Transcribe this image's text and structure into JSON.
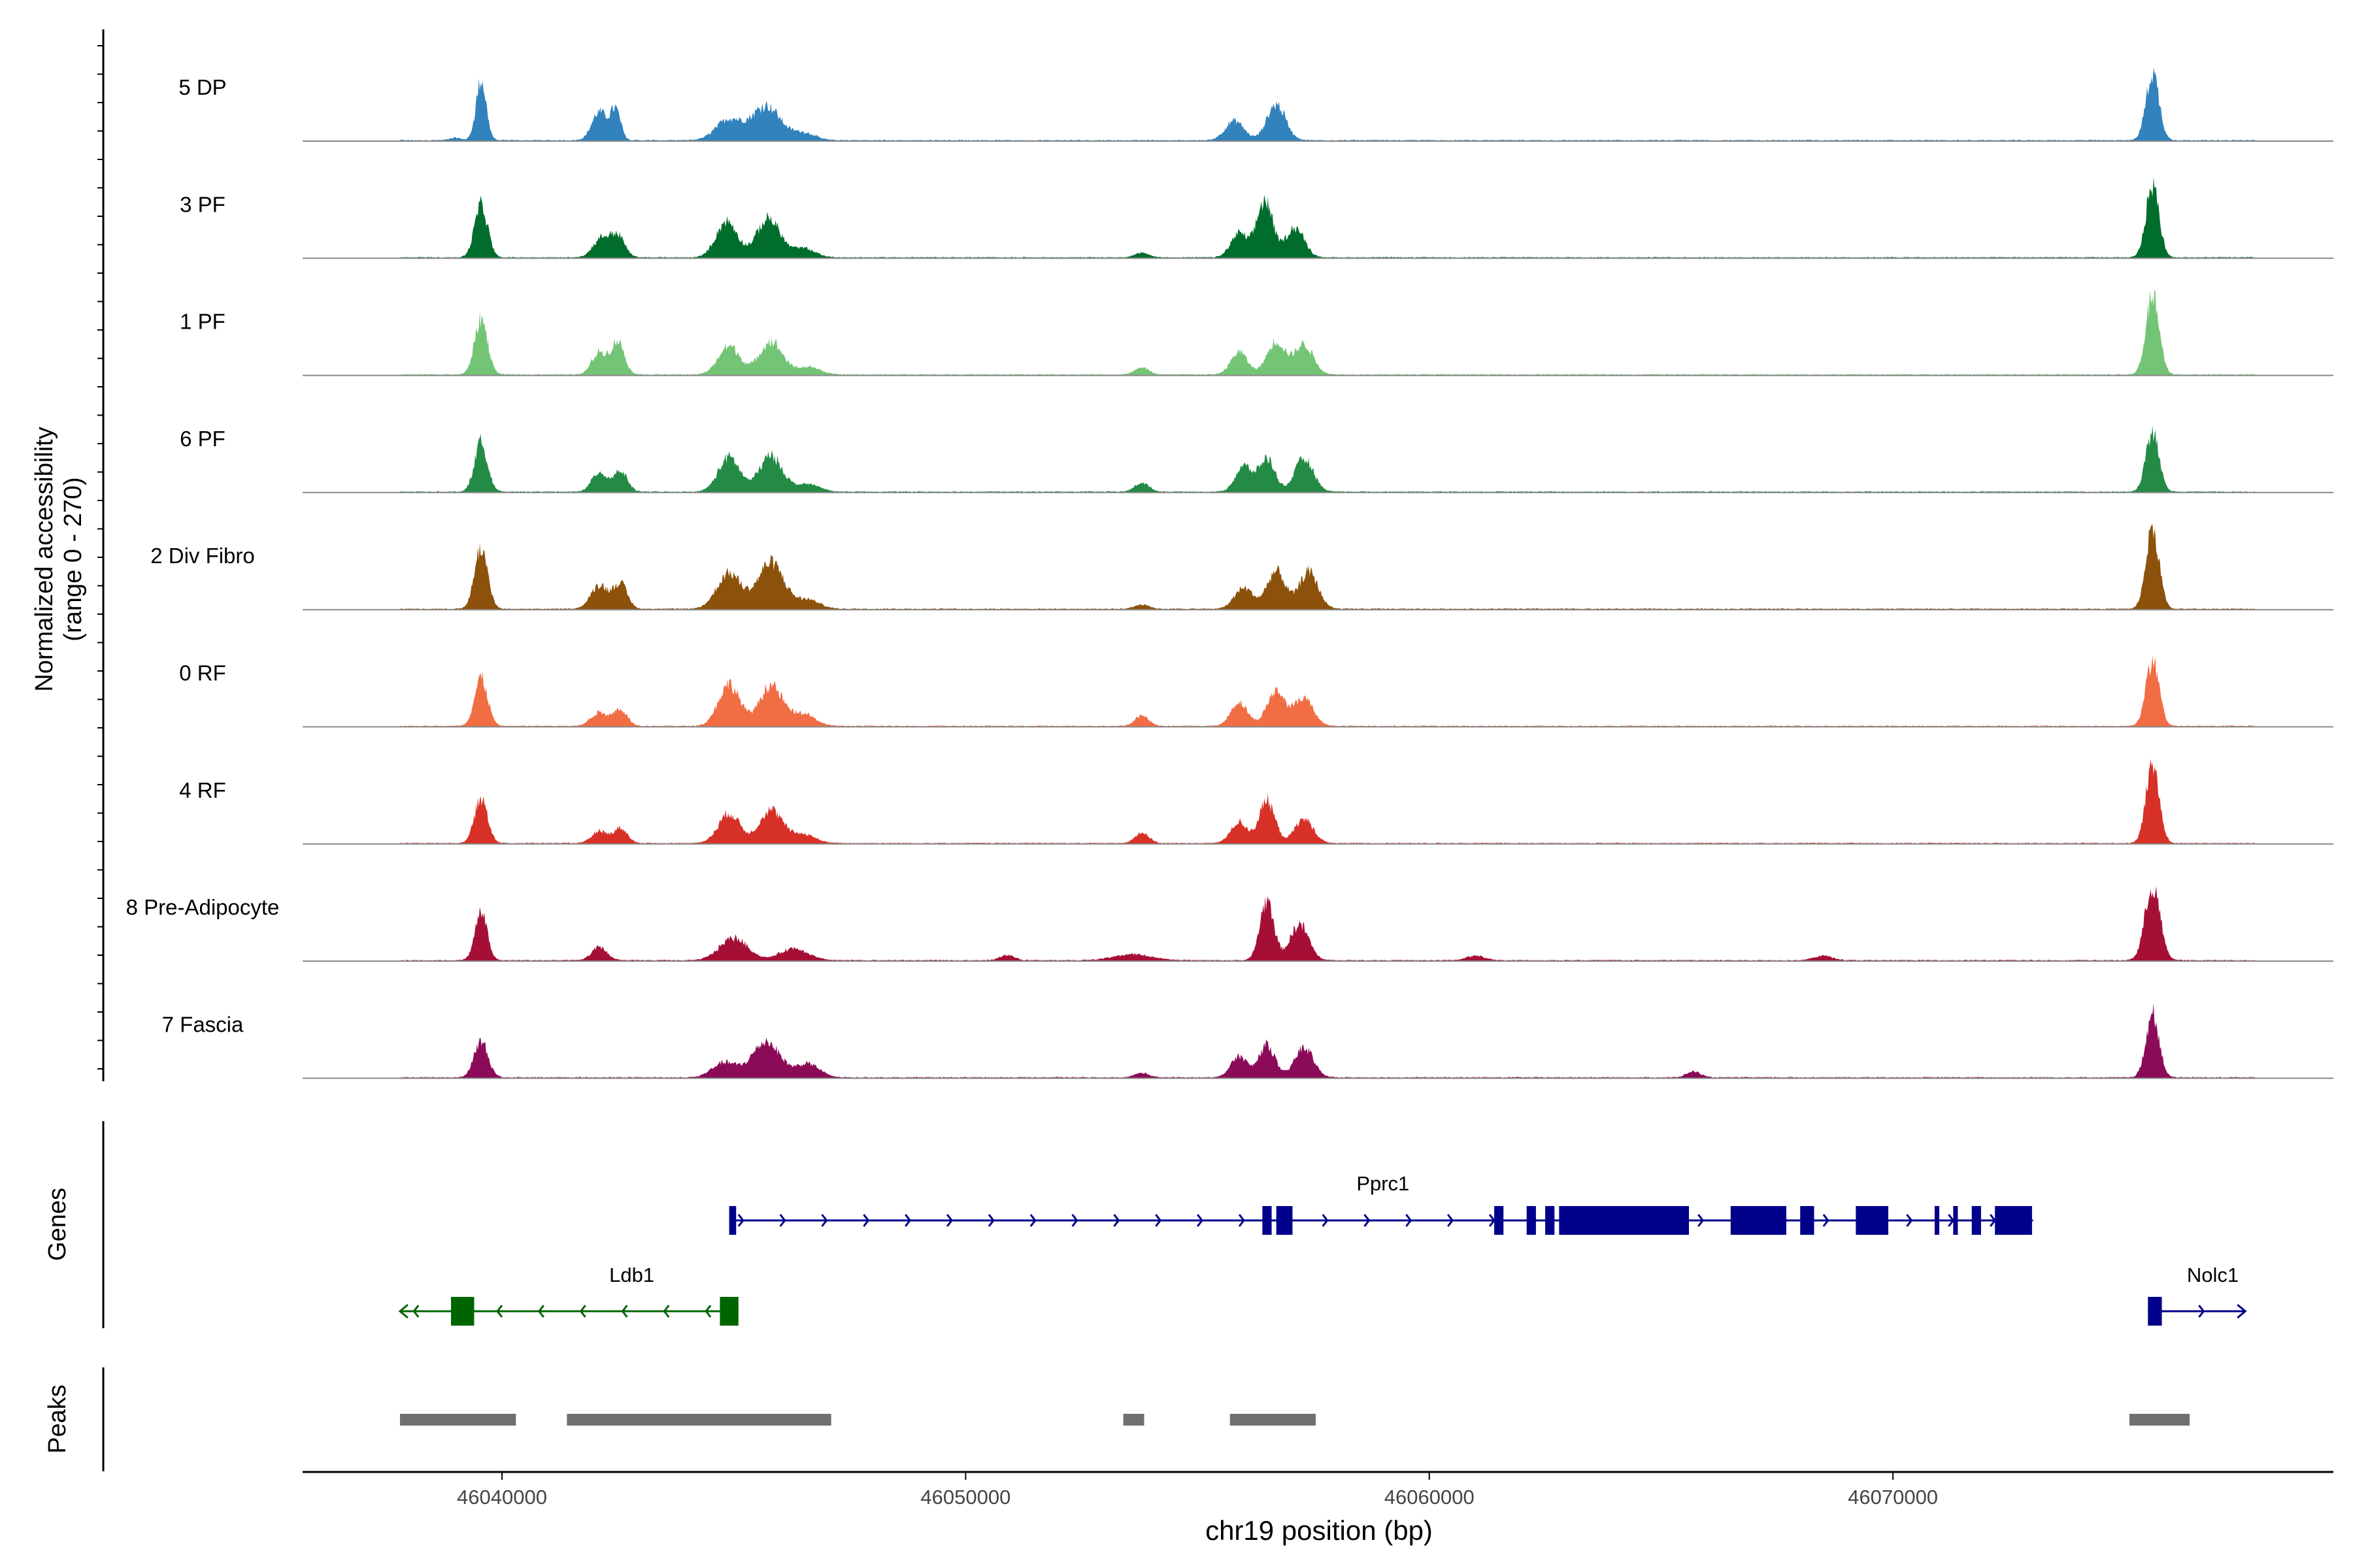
{
  "chart_data": {
    "type": "area",
    "genomic_region": "chr19:46035700-46079500",
    "ylabel": "Normalized accessibility",
    "ylabel_range": "(range 0 - 270)",
    "ylim": [
      0,
      270
    ],
    "xlabel": "chr19 position (bp)",
    "xlim": [
      46035700,
      46079500
    ],
    "x_ticks": [
      46040000,
      46050000,
      46060000,
      46070000
    ],
    "x_tick_labels": [
      "46040000",
      "46050000",
      "46060000",
      "46070000"
    ],
    "tracks": [
      {
        "name": "5 DP",
        "color": "#3182BD",
        "scale": 1.0,
        "peaks": [
          [
            46039550,
            200,
            110
          ],
          [
            46039000,
            8,
            120
          ],
          [
            46042100,
            95,
            160
          ],
          [
            46042450,
            100,
            110
          ],
          [
            46044900,
            70,
            280
          ],
          [
            46045700,
            115,
            300
          ],
          [
            46046500,
            25,
            250
          ],
          [
            46055800,
            65,
            200
          ],
          [
            46056700,
            120,
            200
          ],
          [
            46075600,
            225,
            140
          ]
        ]
      },
      {
        "name": "3 PF",
        "color": "#006D2C",
        "scale": 1.0,
        "peaks": [
          [
            46039550,
            175,
            140
          ],
          [
            46042150,
            65,
            180
          ],
          [
            46042500,
            70,
            150
          ],
          [
            46044850,
            120,
            230
          ],
          [
            46045750,
            130,
            250
          ],
          [
            46046500,
            30,
            250
          ],
          [
            46053800,
            15,
            150
          ],
          [
            46055900,
            80,
            180
          ],
          [
            46056450,
            190,
            170
          ],
          [
            46057100,
            100,
            200
          ],
          [
            46075600,
            240,
            140
          ]
        ]
      },
      {
        "name": "1 PF",
        "color": "#74C476",
        "scale": 1.0,
        "peaks": [
          [
            46039550,
            185,
            140
          ],
          [
            46042100,
            75,
            160
          ],
          [
            46042500,
            110,
            140
          ],
          [
            46044900,
            95,
            230
          ],
          [
            46045800,
            110,
            250
          ],
          [
            46046600,
            25,
            250
          ],
          [
            46053800,
            25,
            150
          ],
          [
            46055900,
            75,
            180
          ],
          [
            46056700,
            110,
            200
          ],
          [
            46057300,
            100,
            200
          ],
          [
            46075600,
            265,
            140
          ]
        ]
      },
      {
        "name": "6 PF",
        "color": "#238B45",
        "scale": 1.0,
        "peaks": [
          [
            46039550,
            165,
            140
          ],
          [
            46042100,
            65,
            160
          ],
          [
            46042550,
            70,
            150
          ],
          [
            46044900,
            115,
            230
          ],
          [
            46045800,
            120,
            250
          ],
          [
            46046600,
            25,
            250
          ],
          [
            46053800,
            30,
            150
          ],
          [
            46056000,
            85,
            180
          ],
          [
            46056500,
            110,
            170
          ],
          [
            46057300,
            110,
            200
          ],
          [
            46075600,
            200,
            140
          ]
        ]
      },
      {
        "name": "2 Div Fibro",
        "color": "#8C510A",
        "scale": 1.0,
        "peaks": [
          [
            46039550,
            205,
            140
          ],
          [
            46042100,
            80,
            180
          ],
          [
            46042550,
            85,
            150
          ],
          [
            46044900,
            120,
            260
          ],
          [
            46045800,
            155,
            280
          ],
          [
            46046600,
            30,
            250
          ],
          [
            46053800,
            15,
            150
          ],
          [
            46056000,
            70,
            200
          ],
          [
            46056700,
            125,
            200
          ],
          [
            46057400,
            125,
            200
          ],
          [
            46075600,
            270,
            140
          ]
        ]
      },
      {
        "name": "0 RF",
        "color": "#F16D43",
        "scale": 1.0,
        "peaks": [
          [
            46039550,
            160,
            140
          ],
          [
            46042100,
            45,
            180
          ],
          [
            46042550,
            55,
            150
          ],
          [
            46044900,
            140,
            230
          ],
          [
            46045800,
            135,
            250
          ],
          [
            46046500,
            40,
            250
          ],
          [
            46053800,
            35,
            150
          ],
          [
            46055900,
            80,
            180
          ],
          [
            46056700,
            115,
            200
          ],
          [
            46057300,
            95,
            200
          ],
          [
            46075600,
            220,
            140
          ]
        ]
      },
      {
        "name": "4 RF",
        "color": "#D73027",
        "scale": 1.0,
        "peaks": [
          [
            46039550,
            150,
            140
          ],
          [
            46042100,
            40,
            160
          ],
          [
            46042550,
            50,
            150
          ],
          [
            46044900,
            100,
            230
          ],
          [
            46045800,
            110,
            250
          ],
          [
            46046500,
            30,
            250
          ],
          [
            46053800,
            35,
            150
          ],
          [
            46055900,
            70,
            180
          ],
          [
            46056500,
            140,
            170
          ],
          [
            46057300,
            80,
            200
          ],
          [
            46075600,
            270,
            140
          ]
        ]
      },
      {
        "name": "8 Pre-Adipocyte",
        "color": "#A50F36",
        "scale": 1.0,
        "peaks": [
          [
            46039550,
            160,
            130
          ],
          [
            46042100,
            45,
            160
          ],
          [
            46045000,
            75,
            300
          ],
          [
            46046300,
            40,
            300
          ],
          [
            46056500,
            200,
            150
          ],
          [
            46057200,
            120,
            200
          ],
          [
            46075600,
            250,
            160
          ],
          [
            46053600,
            20,
            400
          ],
          [
            46050900,
            18,
            150
          ],
          [
            46061000,
            15,
            200
          ],
          [
            46068500,
            15,
            200
          ]
        ]
      },
      {
        "name": "7 Fascia",
        "color": "#8B0B58",
        "scale": 1.0,
        "peaks": [
          [
            46039550,
            120,
            150
          ],
          [
            46044800,
            50,
            260
          ],
          [
            46045700,
            120,
            300
          ],
          [
            46046600,
            45,
            250
          ],
          [
            46053800,
            15,
            150
          ],
          [
            46055900,
            70,
            180
          ],
          [
            46056500,
            110,
            170
          ],
          [
            46057300,
            100,
            200
          ],
          [
            46065700,
            20,
            150
          ],
          [
            46075600,
            215,
            140
          ]
        ]
      }
    ],
    "genes_label": "Genes",
    "genes": [
      {
        "name": "Pprc1",
        "color": "#00008B",
        "strand": "+",
        "start": 46044900,
        "end": 46073000,
        "exons": [
          [
            46044900,
            46045050
          ],
          [
            46056400,
            46056600
          ],
          [
            46056700,
            46057050
          ],
          [
            46061400,
            46061600
          ],
          [
            46062100,
            46062300
          ],
          [
            46062500,
            46062700
          ],
          [
            46062800,
            46065600
          ],
          [
            46066500,
            46067700
          ],
          [
            46068000,
            46068300
          ],
          [
            46069200,
            46069900
          ],
          [
            46070900,
            46071000
          ],
          [
            46071300,
            46071400
          ],
          [
            46071700,
            46071900
          ],
          [
            46072200,
            46073000
          ]
        ]
      },
      {
        "name": "Ldb1",
        "color": "#006400",
        "strand": "-",
        "start": 46037800,
        "end": 46045100,
        "exons": [
          [
            46038900,
            46039400
          ],
          [
            46044700,
            46045100
          ]
        ]
      },
      {
        "name": "Nolc1",
        "color": "#00008B",
        "strand": "+",
        "start": 46075500,
        "end": 46077600,
        "exons": [
          [
            46075500,
            46075800
          ]
        ]
      }
    ],
    "peaks_label": "Peaks",
    "peak_regions": [
      [
        46037800,
        46040300
      ],
      [
        46041400,
        46047100
      ],
      [
        46053400,
        46053850
      ],
      [
        46055700,
        46057550
      ],
      [
        46075100,
        46076400
      ]
    ]
  }
}
